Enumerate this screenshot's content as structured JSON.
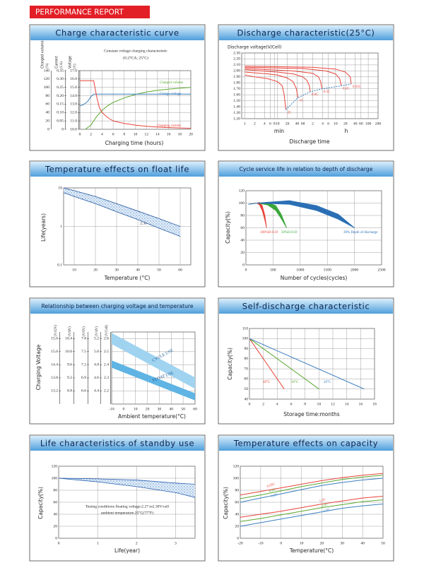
{
  "header": {
    "title": "PERFORMANCE REPORT"
  },
  "chart_data": [
    {
      "type": "line",
      "title": "Charge characteristic curve",
      "annotations": [
        "Constant voltage charging characteristic",
        "(0.27CA, 25°C)"
      ],
      "xlabel": "Charging time (hours)",
      "xlim": [
        0,
        20
      ],
      "xticks": [
        0,
        2,
        4,
        6,
        8,
        10,
        12,
        14,
        16,
        18,
        20
      ],
      "ylabel": "Charged volume",
      "yunit": "(%)",
      "ylim": [
        0,
        140
      ],
      "yticks": [
        0,
        20,
        40,
        60,
        80,
        100,
        120,
        140
      ],
      "y2label": "Current",
      "y2unit": "(CA)",
      "y2lim": [
        0,
        0.35
      ],
      "y2ticks": [
        0,
        0.05,
        {
          "value": 0.1,
          "label": "0.10"
        },
        0.15,
        {
          "value": 0.2,
          "label": "0.20"
        },
        0.25,
        {
          "value": 0.3,
          "label": "0.30"
        },
        0.35
      ],
      "y3label": "Voltage",
      "y3unit": "(V)",
      "y3lim": [
        10,
        17
      ],
      "y3ticks": [
        {
          "value": 10,
          "label": "10.0"
        },
        {
          "value": 11,
          "label": "11.0"
        },
        {
          "value": 12,
          "label": "12.0"
        },
        {
          "value": 13,
          "label": "13.0"
        },
        {
          "value": 14,
          "label": "14.0"
        },
        {
          "value": 15,
          "label": "15.0"
        },
        {
          "value": 16,
          "label": "16.0"
        },
        {
          "value": 17,
          "label": "17.0"
        }
      ],
      "grid": true,
      "series": [
        {
          "name": "Charged volume",
          "color": "#5aa82e",
          "x": [
            1,
            2,
            3,
            4,
            5,
            6,
            8,
            10,
            12,
            14,
            16,
            18,
            20
          ],
          "values": [
            0,
            10,
            30,
            45,
            56,
            64,
            75,
            83,
            89,
            93,
            96,
            98,
            100
          ]
        },
        {
          "name": "Charge voltage",
          "color": "#3a7fc0",
          "axis": "y3",
          "x": [
            0,
            0.5,
            1,
            1.5,
            2,
            2.5,
            20
          ],
          "values": [
            12.8,
            12.9,
            13.1,
            13.4,
            13.9,
            14.2,
            14.2
          ]
        },
        {
          "name": "Charging current",
          "color": "#e8433a",
          "axis": "y2",
          "x": [
            0,
            2.5,
            3,
            3.5,
            4,
            5,
            6,
            8,
            10,
            12,
            14,
            16,
            18,
            20
          ],
          "values": [
            0.29,
            0.29,
            0.2,
            0.13,
            0.1,
            0.07,
            0.05,
            0.035,
            0.025,
            0.018,
            0.013,
            0.01,
            0.008,
            0.006
          ]
        }
      ]
    },
    {
      "type": "line",
      "title": "Discharge characteristic(25°C)",
      "ylabel": "Discharge voltage(V/Cell)",
      "ylim": [
        1.2,
        2.3
      ],
      "yticks": [
        {
          "value": 1.2,
          "label": "1.20"
        },
        {
          "value": 1.3,
          "label": "1.30"
        },
        {
          "value": 1.4,
          "label": "1.40"
        },
        {
          "value": 1.5,
          "label": "1.50"
        },
        {
          "value": 1.6,
          "label": "1.60"
        },
        {
          "value": 1.7,
          "label": "1.70"
        },
        {
          "value": 1.8,
          "label": "1.80"
        },
        {
          "value": 1.9,
          "label": "1.90"
        },
        {
          "value": 2.0,
          "label": "2.00"
        },
        {
          "value": 2.1,
          "label": "2.10"
        },
        {
          "value": 2.2,
          "label": "2.20"
        },
        {
          "value": 2.3,
          "label": "2.30"
        }
      ],
      "xlabel": "Discharge time",
      "xlog": true,
      "xlim": [
        0.8,
        12000
      ],
      "xticks": [
        1,
        2,
        4,
        6,
        8,
        10,
        20,
        40,
        60,
        {
          "value": 120,
          "label": "2"
        },
        {
          "value": 240,
          "label": "4"
        },
        {
          "value": 360,
          "label": "6"
        },
        {
          "value": 600,
          "label": "10"
        },
        {
          "value": 1200,
          "label": "20"
        },
        {
          "value": 2400,
          "label": "40"
        },
        {
          "value": 3600,
          "label": "60"
        },
        {
          "value": 6000,
          "label": "100"
        },
        {
          "value": 12000,
          "label": "200"
        }
      ],
      "xgroup_labels": [
        "min",
        "h"
      ],
      "grid": true,
      "series": [
        {
          "name": "2C",
          "color": "#e8433a",
          "x": [
            1,
            2,
            5,
            10,
            14,
            16,
            18
          ],
          "values": [
            1.93,
            1.9,
            1.87,
            1.82,
            1.75,
            1.6,
            1.35
          ]
        },
        {
          "name": "1C",
          "color": "#e8433a",
          "x": [
            1,
            5,
            10,
            20,
            30,
            38,
            42
          ],
          "values": [
            1.98,
            1.95,
            1.93,
            1.88,
            1.82,
            1.7,
            1.55
          ]
        },
        {
          "name": "0.6C",
          "color": "#e8433a",
          "x": [
            1,
            10,
            30,
            60,
            80,
            95,
            100
          ],
          "values": [
            2.02,
            1.98,
            1.95,
            1.9,
            1.84,
            1.75,
            1.65
          ]
        },
        {
          "name": "0.3C",
          "color": "#e8433a",
          "x": [
            1,
            30,
            120,
            180,
            210,
            230
          ],
          "values": [
            2.04,
            2.0,
            1.96,
            1.9,
            1.82,
            1.7
          ]
        },
        {
          "name": "0.1C",
          "color": "#e8433a",
          "x": [
            1,
            60,
            300,
            600,
            800,
            900
          ],
          "values": [
            2.06,
            2.04,
            2.0,
            1.95,
            1.87,
            1.75
          ]
        },
        {
          "name": "0.05C",
          "color": "#e8433a",
          "x": [
            1,
            120,
            600,
            1200,
            1700,
            1800
          ],
          "values": [
            2.08,
            2.06,
            2.03,
            1.98,
            1.9,
            1.78
          ]
        },
        {
          "color": "#3a7fc0",
          "dash": true,
          "x": [
            18,
            42,
            100,
            230,
            900,
            1800
          ],
          "values": [
            1.35,
            1.55,
            1.65,
            1.7,
            1.75,
            1.78
          ]
        }
      ]
    },
    {
      "type": "line",
      "title": "Temperature effects on float life",
      "ylabel": "Life(years)",
      "ylog": true,
      "ylim": [
        0.1,
        10
      ],
      "yticks": [
        0.1,
        1,
        10
      ],
      "xlabel": "Temperature (°C)",
      "xlim": [
        5,
        65
      ],
      "xticks": [
        10,
        20,
        30,
        40,
        50,
        60
      ],
      "annotations": [
        "2.30V/cell"
      ],
      "grid": true,
      "band_style": "dots",
      "series": [
        {
          "color": "#2a5aa0",
          "x": [
            5,
            10,
            20,
            30,
            40,
            50,
            60
          ],
          "values": [
            10,
            8.5,
            6.0,
            3.9,
            2.5,
            1.6,
            1.0
          ],
          "lower": [
            7.5,
            6.0,
            3.9,
            2.4,
            1.5,
            0.9,
            0.55
          ]
        }
      ]
    },
    {
      "type": "line",
      "title": "Cycle service life in relation to depth of discharge",
      "ylabel": "Capacity(%)",
      "ylim": [
        0,
        120
      ],
      "yticks": [
        0,
        20,
        40,
        60,
        80,
        100,
        120
      ],
      "xlabel": "Number of cycles(cycles)",
      "xlim": [
        0,
        2500
      ],
      "xticks": [
        0,
        500,
        1000,
        1500,
        2000,
        2500
      ],
      "grid": true,
      "band_style": "solid",
      "series": [
        {
          "name": "100%D.O.D",
          "color": "#e8433a",
          "x": [
            50,
            200,
            250,
            300,
            350,
            380
          ],
          "values": [
            98,
            100,
            101,
            96,
            80,
            60
          ],
          "lower": [
            98,
            100,
            97,
            88,
            72,
            60
          ]
        },
        {
          "name": "50%D.O.D",
          "color": "#3aa63a",
          "x": [
            50,
            200,
            400,
            550,
            650,
            750
          ],
          "values": [
            98,
            100,
            101,
            96,
            82,
            60
          ],
          "lower": [
            98,
            100,
            97,
            88,
            75,
            60
          ]
        },
        {
          "name": "30% Depth of discharge",
          "color": "#2a6fb5",
          "x": [
            50,
            200,
            800,
            1300,
            1700,
            2000
          ],
          "values": [
            98,
            100,
            104,
            96,
            82,
            60
          ],
          "lower": [
            98,
            100,
            98,
            88,
            74,
            60
          ]
        }
      ]
    },
    {
      "type": "line",
      "title": "Relationship between charging voltage and temperature",
      "ylabel": "Charging Voltage",
      "yunit": "(V/Cell)",
      "ylim": [
        2.1,
        2.65
      ],
      "yticks": [
        2.2,
        2.3,
        2.4,
        2.5,
        2.6
      ],
      "y2unit": "(V/12V)",
      "y2lim": [
        12.6,
        15.9
      ],
      "y2ticks": [
        13.2,
        13.8,
        14.4,
        {
          "value": 15,
          "label": "15.0"
        },
        15.6
      ],
      "y3unit": "(V/8V)",
      "y3lim": [
        8.4,
        10.6
      ],
      "y3ticks": [
        8.8,
        9.2,
        9.6,
        {
          "value": 10,
          "label": "10.0"
        },
        10.4
      ],
      "y4unit": "(V/6V)",
      "y4lim": [
        6.3,
        7.95
      ],
      "y4ticks": [
        6.6,
        6.9,
        7.2,
        7.5,
        7.8
      ],
      "y5unit": "(V/4V)",
      "y5lim": [
        4.2,
        5.3
      ],
      "y5ticks": [
        4.4,
        4.6,
        4.8,
        {
          "value": 5,
          "label": "5.0"
        },
        5.2
      ],
      "xlabel": "Ambient temperature(°C)",
      "xlim": [
        -10,
        60
      ],
      "xticks": [
        -10,
        0,
        10,
        20,
        30,
        40,
        50,
        60
      ],
      "grid": true,
      "band_style": "solid",
      "series": [
        {
          "name": "CYCLE USE",
          "color": "#9fd3f0",
          "x": [
            -10,
            60
          ],
          "values": [
            2.64,
            2.3
          ],
          "lower": [
            2.56,
            2.22
          ]
        },
        {
          "name": "FLOAT USE",
          "color": "#5fb4e4",
          "x": [
            -10,
            60
          ],
          "values": [
            2.43,
            2.18
          ],
          "lower": [
            2.38,
            2.13
          ]
        }
      ]
    },
    {
      "type": "line",
      "title": "Self-discharge characteristic",
      "ylabel": "Capacity(%)",
      "ylim": [
        40,
        110
      ],
      "yticks": [
        40,
        50,
        60,
        70,
        80,
        90,
        100,
        110
      ],
      "xlabel": "Storage time:months",
      "xlim": [
        0,
        18
      ],
      "xticks": [
        0,
        2,
        4,
        6,
        8,
        10,
        12,
        14,
        16,
        18
      ],
      "grid": true,
      "series": [
        {
          "name": "40°C",
          "color": "#e8433a",
          "x": [
            0,
            5
          ],
          "values": [
            100,
            50
          ]
        },
        {
          "name": "30°C",
          "color": "#5aa82e",
          "x": [
            0,
            10
          ],
          "values": [
            100,
            50
          ]
        },
        {
          "name": "20°C",
          "color": "#3a7fc0",
          "x": [
            0,
            16.5
          ],
          "values": [
            100,
            50
          ]
        }
      ]
    },
    {
      "type": "line",
      "title": "Life characteristics of standby use",
      "ylabel": "Capacity(%)",
      "ylim": [
        0,
        120
      ],
      "yticks": [
        0,
        20,
        40,
        60,
        80,
        100,
        120
      ],
      "xlabel": "Life(year)",
      "xlim": [
        0,
        3.5
      ],
      "xticks": [
        0,
        1,
        2,
        3
      ],
      "annotations": [
        "Testing conditions floating voltage:2.27 to2.30V/cell",
        "ambient temperature:25°C(77°F)"
      ],
      "grid": true,
      "band_style": "dots",
      "series": [
        {
          "color": "#2a62b0",
          "x": [
            0,
            1,
            2,
            3,
            3.5
          ],
          "values": [
            100,
            99,
            97,
            92,
            90
          ],
          "lower": [
            100,
            94,
            86,
            76,
            68
          ]
        }
      ]
    },
    {
      "type": "line",
      "title": "Temperature effects on capacity",
      "ylabel": "Capacity(%)",
      "ylim": [
        0,
        120
      ],
      "yticks": [
        0,
        20,
        40,
        60,
        80,
        100,
        120
      ],
      "xlabel": "Temperature(°C)",
      "xlim": [
        -20,
        50
      ],
      "xticks": [
        -20,
        -10,
        0,
        10,
        20,
        30,
        40,
        50
      ],
      "grid": true,
      "x": [
        -20,
        -10,
        0,
        10,
        20,
        30,
        40,
        50
      ],
      "series": [
        {
          "name": "0.05C",
          "color": "#e8433a",
          "values": [
            72,
            78,
            84,
            90,
            96,
            101,
            105,
            108
          ]
        },
        {
          "name": "0.1C",
          "color": "#5aa82e",
          "values": [
            66,
            72,
            79,
            86,
            92,
            98,
            102,
            105
          ]
        },
        {
          "name": "0.2C",
          "color": "#3a7fc0",
          "values": [
            60,
            67,
            74,
            81,
            88,
            93,
            97,
            100
          ]
        },
        {
          "name": "1.0C",
          "color": "#e8433a",
          "values": [
            35,
            40,
            45,
            51,
            57,
            62,
            67,
            70
          ]
        },
        {
          "name": "2.0C",
          "color": "#5aa82e",
          "values": [
            28,
            33,
            39,
            45,
            51,
            56,
            61,
            64
          ]
        },
        {
          "name": "3.0C",
          "color": "#3a7fc0",
          "values": [
            20,
            26,
            32,
            38,
            44,
            50,
            54,
            57
          ]
        }
      ]
    }
  ]
}
